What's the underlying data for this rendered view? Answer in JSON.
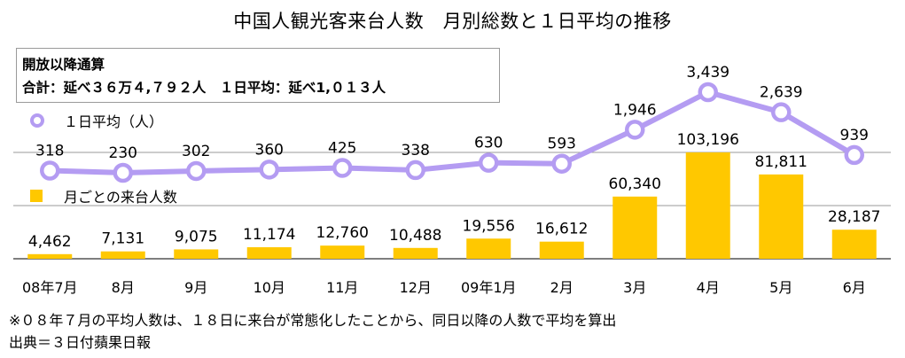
{
  "title": "中国人観光客来台人数　月別総数と１日平均の推移",
  "summary": {
    "heading": "開放以降通算",
    "totals": "合計：延べ３６万４,７９２人　１日平均：延べ1,０１３人"
  },
  "legend": {
    "avg": "１日平均（人）",
    "total": "月ごとの来台人数"
  },
  "footnote": "※０８年７月の平均人数は、１８日に来台が常態化したことから、同日以降の人数で平均を算出",
  "source": "出典＝３日付蘋果日報",
  "colors": {
    "bar": "#ffc800",
    "line": "#b49cf2",
    "grid": "#888888"
  },
  "chart_data": {
    "type": "bar+line",
    "categories": [
      "08年7月",
      "8月",
      "9月",
      "10月",
      "11月",
      "12月",
      "09年1月",
      "2月",
      "3月",
      "4月",
      "5月",
      "6月"
    ],
    "series": [
      {
        "name": "月ごとの来台人数",
        "type": "bar",
        "values": [
          4462,
          7131,
          9075,
          11174,
          12760,
          10488,
          19556,
          16612,
          60340,
          103196,
          81811,
          28187
        ],
        "labels": [
          "4,462",
          "7,131",
          "9,075",
          "11,174",
          "12,760",
          "10,488",
          "19,556",
          "16,612",
          "60,340",
          "103,196",
          "81,811",
          "28,187"
        ]
      },
      {
        "name": "１日平均（人）",
        "type": "line",
        "values": [
          318,
          230,
          302,
          360,
          425,
          338,
          630,
          593,
          1946,
          3439,
          2639,
          939
        ],
        "labels": [
          "318",
          "230",
          "302",
          "360",
          "425",
          "338",
          "630",
          "593",
          "1,946",
          "3,439",
          "2,639",
          "939"
        ]
      }
    ],
    "grid": true,
    "legend_position": "top-left"
  }
}
